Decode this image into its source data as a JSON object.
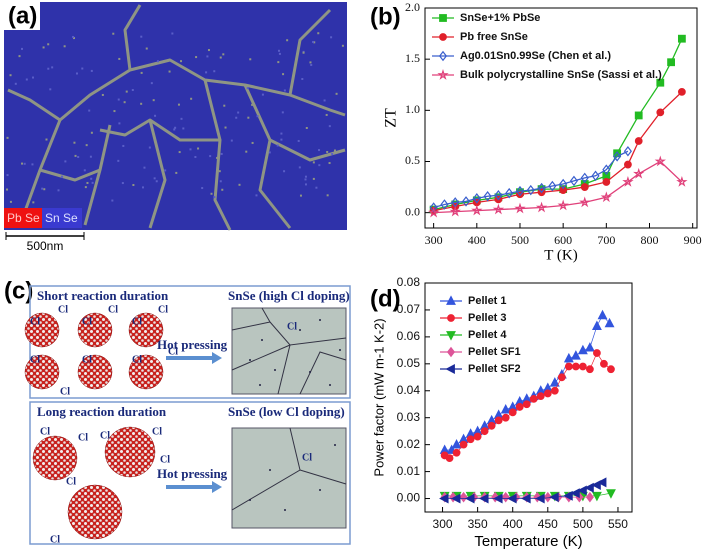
{
  "panel_a": {
    "label": "(a)",
    "legend": [
      "Pb Se",
      "Sn Se"
    ],
    "scale_bar": "500nm"
  },
  "panel_c": {
    "label": "(c)",
    "top": {
      "title": "Short reaction duration",
      "result": "SnSe (high Cl doping)",
      "process": "Hot pressing",
      "cl_labels": [
        "Cl",
        "Cl",
        "Cl",
        "Cl",
        "Cl",
        "Cl",
        "Cl",
        "Cl",
        "Cl",
        "Cl",
        "Cl"
      ],
      "grain_label": "Cl"
    },
    "bottom": {
      "title": "Long reaction duration",
      "result": "SnSe (low Cl doping)",
      "process": "Hot pressing",
      "cl_labels": [
        "Cl",
        "Cl",
        "Cl",
        "Cl",
        "Cl",
        "Cl",
        "Cl"
      ],
      "grain_label": "Cl"
    }
  },
  "chart_data": [
    {
      "type": "line",
      "label": "(b)",
      "x_label": "T (K)",
      "y_label": "ZT",
      "xlim": [
        280,
        910
      ],
      "ylim": [
        -0.15,
        2.0
      ],
      "xticks": [
        300,
        400,
        500,
        600,
        700,
        800,
        900
      ],
      "yticks": [
        {
          "value": 0,
          "label": "0.0"
        },
        0.5,
        {
          "value": 1,
          "label": "1.0"
        },
        1.5,
        {
          "value": 2,
          "label": "2.0"
        }
      ],
      "legend": "upper left",
      "series": [
        {
          "name": "SnSe+1% PbSe",
          "color": "#22bb22",
          "marker": "square",
          "filled": true,
          "x": [
            300,
            350,
            400,
            450,
            500,
            550,
            600,
            650,
            700,
            725,
            775,
            825,
            850,
            875
          ],
          "values": [
            0.03,
            0.08,
            0.12,
            0.15,
            0.2,
            0.23,
            0.23,
            0.28,
            0.36,
            0.58,
            0.95,
            1.27,
            1.47,
            1.7
          ]
        },
        {
          "name": "Pb free SnSe",
          "color": "#e0202a",
          "marker": "circle",
          "filled": true,
          "x": [
            300,
            350,
            400,
            450,
            500,
            550,
            600,
            650,
            700,
            750,
            775,
            825,
            875
          ],
          "values": [
            0.02,
            0.06,
            0.1,
            0.13,
            0.18,
            0.2,
            0.22,
            0.25,
            0.3,
            0.47,
            0.7,
            0.98,
            1.18
          ]
        },
        {
          "name": "Ag0.01Sn0.99Se (Chen et al.)",
          "color": "#3a5fcd",
          "marker": "diamond",
          "filled": false,
          "x": [
            300,
            325,
            350,
            375,
            400,
            425,
            450,
            475,
            500,
            525,
            550,
            575,
            600,
            625,
            650,
            675,
            700,
            725,
            750
          ],
          "values": [
            0.05,
            0.08,
            0.1,
            0.11,
            0.14,
            0.16,
            0.17,
            0.19,
            0.21,
            0.22,
            0.24,
            0.26,
            0.28,
            0.31,
            0.34,
            0.36,
            0.42,
            0.55,
            0.6
          ]
        },
        {
          "name": "Bulk polycrystalline SnSe (Sassi et al.)",
          "color": "#e0407a",
          "marker": "star",
          "filled": false,
          "x": [
            300,
            350,
            400,
            450,
            500,
            550,
            600,
            650,
            700,
            750,
            775,
            825,
            875
          ],
          "values": [
            0.0,
            0.01,
            0.02,
            0.03,
            0.04,
            0.05,
            0.07,
            0.1,
            0.15,
            0.3,
            0.38,
            0.5,
            0.3
          ]
        }
      ]
    },
    {
      "type": "line",
      "label": "(d)",
      "x_label": "Temperature (K)",
      "y_label": "Power factor (mW m-1 K-2)",
      "xlim": [
        275,
        570
      ],
      "ylim": [
        -0.005,
        0.08
      ],
      "xticks": [
        300,
        350,
        400,
        450,
        500,
        550
      ],
      "yticks": [
        {
          "value": 0,
          "label": "0.00"
        },
        {
          "value": 0.01,
          "label": "0.01"
        },
        {
          "value": 0.02,
          "label": "0.02"
        },
        {
          "value": 0.03,
          "label": "0.03"
        },
        {
          "value": 0.04,
          "label": "0.04"
        },
        {
          "value": 0.05,
          "label": "0.05"
        },
        {
          "value": 0.06,
          "label": "0.06"
        },
        {
          "value": 0.07,
          "label": "0.07"
        },
        {
          "value": 0.08,
          "label": "0.08"
        }
      ],
      "legend": "upper left",
      "series": [
        {
          "name": "Pellet 1",
          "color": "#3355dd",
          "marker": "tri-up",
          "filled": true,
          "x": [
            303,
            313,
            320,
            330,
            340,
            350,
            360,
            370,
            380,
            390,
            400,
            410,
            420,
            430,
            440,
            450,
            460,
            470,
            480,
            490,
            500,
            510,
            520,
            528,
            538
          ],
          "values": [
            0.018,
            0.018,
            0.02,
            0.022,
            0.024,
            0.025,
            0.027,
            0.029,
            0.031,
            0.033,
            0.034,
            0.036,
            0.037,
            0.038,
            0.04,
            0.041,
            0.043,
            0.046,
            0.052,
            0.053,
            0.055,
            0.056,
            0.064,
            0.068,
            0.065
          ]
        },
        {
          "name": "Pellet 3",
          "color": "#ee2233",
          "marker": "circle",
          "filled": true,
          "x": [
            303,
            310,
            320,
            330,
            340,
            350,
            360,
            370,
            380,
            390,
            400,
            410,
            420,
            430,
            440,
            450,
            460,
            470,
            480,
            490,
            500,
            510,
            520,
            530,
            540
          ],
          "values": [
            0.016,
            0.015,
            0.017,
            0.02,
            0.022,
            0.023,
            0.025,
            0.027,
            0.029,
            0.03,
            0.032,
            0.034,
            0.035,
            0.037,
            0.038,
            0.039,
            0.04,
            0.045,
            0.049,
            0.049,
            0.049,
            0.048,
            0.054,
            0.05,
            0.048
          ]
        },
        {
          "name": "Pellet 4",
          "color": "#22bb22",
          "marker": "tri-down",
          "filled": true,
          "x": [
            303,
            320,
            340,
            360,
            380,
            400,
            420,
            440,
            460,
            480,
            500,
            520,
            540
          ],
          "values": [
            0.001,
            0.001,
            0.001,
            0.001,
            0.001,
            0.001,
            0.001,
            0.001,
            0.001,
            0.001,
            0.001,
            0.001,
            0.002
          ]
        },
        {
          "name": "Pellet SF1",
          "color": "#dd5599",
          "marker": "diamond",
          "filled": true,
          "x": [
            303,
            315,
            330,
            345,
            360,
            375,
            390,
            405,
            420,
            435,
            450,
            465,
            480,
            495,
            510
          ],
          "values": [
            0.0005,
            0.0005,
            0.0005,
            0.0005,
            0.0005,
            0.0005,
            0.0005,
            0.0005,
            0.0005,
            0.0005,
            0.0005,
            0.0005,
            0.0005,
            0.0005,
            0.0005
          ]
        },
        {
          "name": "Pellet SF2",
          "color": "#1a2a99",
          "marker": "tri-left",
          "filled": true,
          "x": [
            303,
            320,
            340,
            360,
            380,
            400,
            420,
            440,
            460,
            480,
            490,
            500,
            510,
            520,
            528
          ],
          "values": [
            0.0,
            0.0,
            0.0,
            0.0,
            0.0,
            0.0,
            0.0,
            0.0,
            0.0005,
            0.001,
            0.002,
            0.003,
            0.004,
            0.005,
            0.006
          ]
        }
      ]
    }
  ]
}
